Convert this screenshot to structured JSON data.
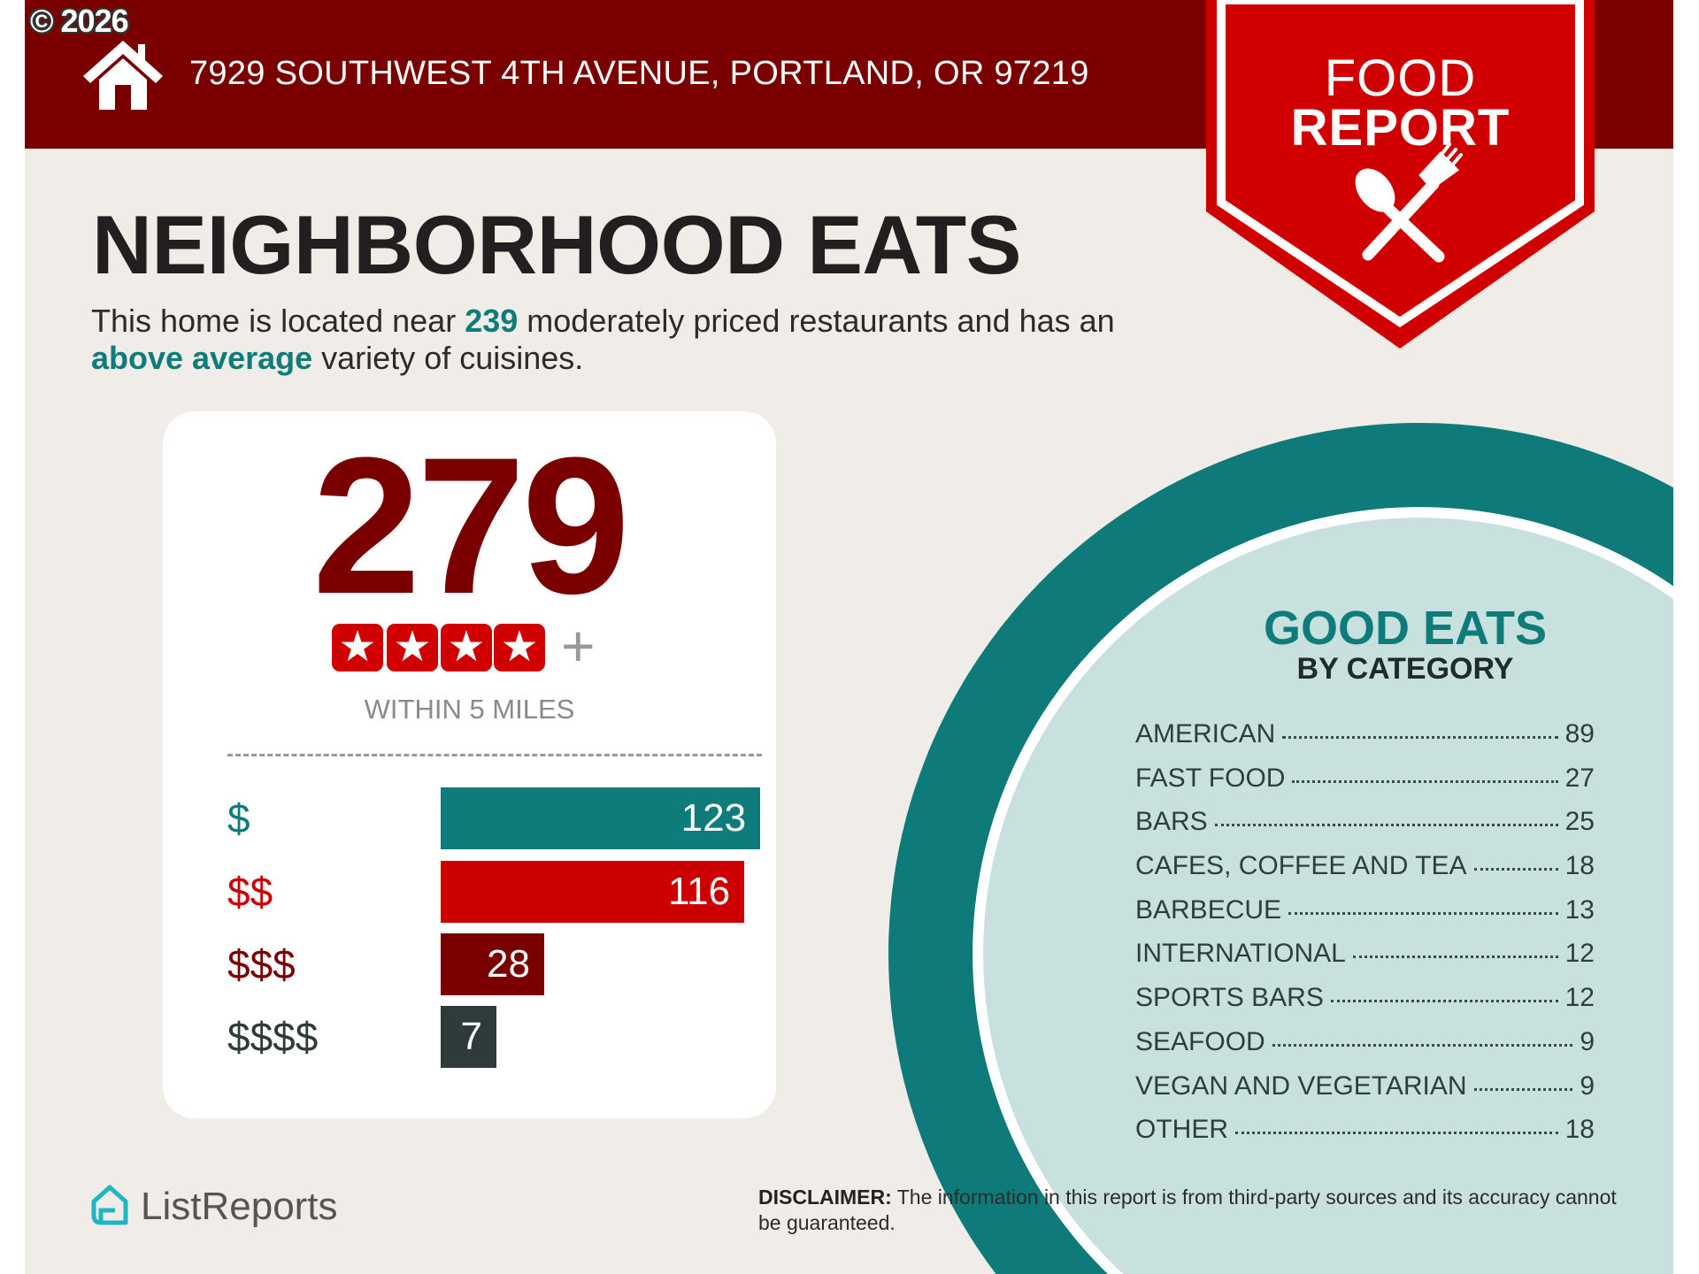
{
  "copyright": "© 2026",
  "header": {
    "address": "7929 SOUTHWEST 4TH AVENUE, PORTLAND, OR 97219",
    "home_icon": "house-icon"
  },
  "banner": {
    "line1": "FOOD",
    "line2": "REPORT",
    "icon": "spoon-fork-icon",
    "color": "#d10000"
  },
  "title": "NEIGHBORHOOD EATS",
  "subtitle": {
    "part1": "This home is located near ",
    "count": "239",
    "part2": " moderately priced restaurants and has an ",
    "variety": "above average",
    "part3": " variety of cuisines."
  },
  "summary": {
    "count": "279",
    "stars": 4,
    "stars_suffix": "+",
    "radius_label": "WITHIN 5 MILES"
  },
  "price_tiers": [
    {
      "label": "$",
      "value": 123,
      "color": "#0e7c7b"
    },
    {
      "label": "$$",
      "value": 116,
      "color": "#cc0000"
    },
    {
      "label": "$$$",
      "value": 28,
      "color": "#7a0000"
    },
    {
      "label": "$$$$",
      "value": 7,
      "color": "#2f3b3b"
    }
  ],
  "categories": {
    "heading": "GOOD EATS",
    "subheading": "BY CATEGORY",
    "items": [
      {
        "name": "AMERICAN",
        "count": "89"
      },
      {
        "name": "FAST FOOD",
        "count": "27"
      },
      {
        "name": "BARS",
        "count": "25"
      },
      {
        "name": "CAFES, COFFEE AND TEA",
        "count": "18"
      },
      {
        "name": "BARBECUE",
        "count": "13"
      },
      {
        "name": "INTERNATIONAL",
        "count": "12"
      },
      {
        "name": "SPORTS BARS",
        "count": "12"
      },
      {
        "name": "SEAFOOD",
        "count": "9"
      },
      {
        "name": "VEGAN AND VEGETARIAN",
        "count": "9"
      },
      {
        "name": "OTHER",
        "count": "18"
      }
    ]
  },
  "footer": {
    "logo_text": "ListReports",
    "disclaimer_label": "DISCLAIMER:",
    "disclaimer_text": " The information in this report is from third-party sources and its accuracy cannot be guaranteed."
  },
  "colors": {
    "header": "#7a0000",
    "teal": "#0e7c7b",
    "circle_fill": "#c8e1df",
    "background": "#f0ece8"
  }
}
